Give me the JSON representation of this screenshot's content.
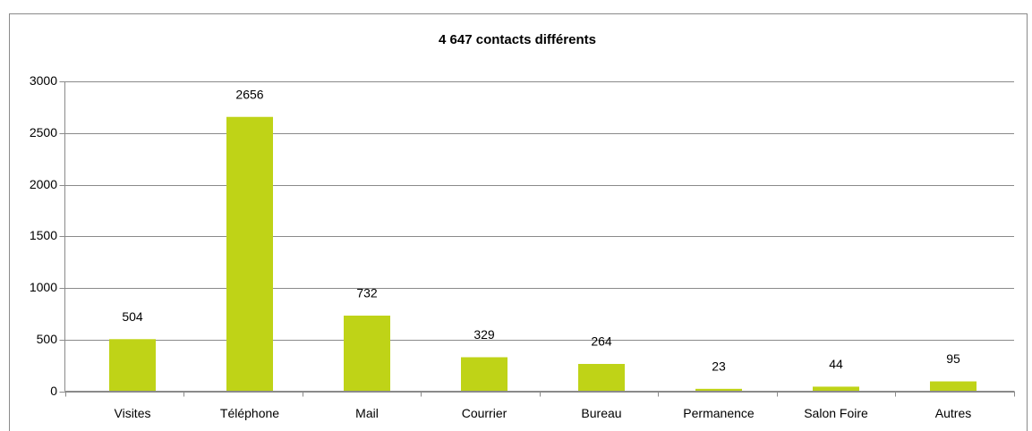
{
  "chart_data": {
    "type": "bar",
    "title": "4 647 contacts différents",
    "categories": [
      "Visites",
      "Téléphone",
      "Mail",
      "Courrier",
      "Bureau",
      "Permanence",
      "Salon Foire",
      "Autres"
    ],
    "values": [
      504,
      2656,
      732,
      329,
      264,
      23,
      44,
      95
    ],
    "color": "#bfd317",
    "ylim": [
      0,
      3000
    ],
    "yticks": [
      0,
      500,
      1000,
      1500,
      2000,
      2500,
      3000
    ],
    "grid": true
  }
}
